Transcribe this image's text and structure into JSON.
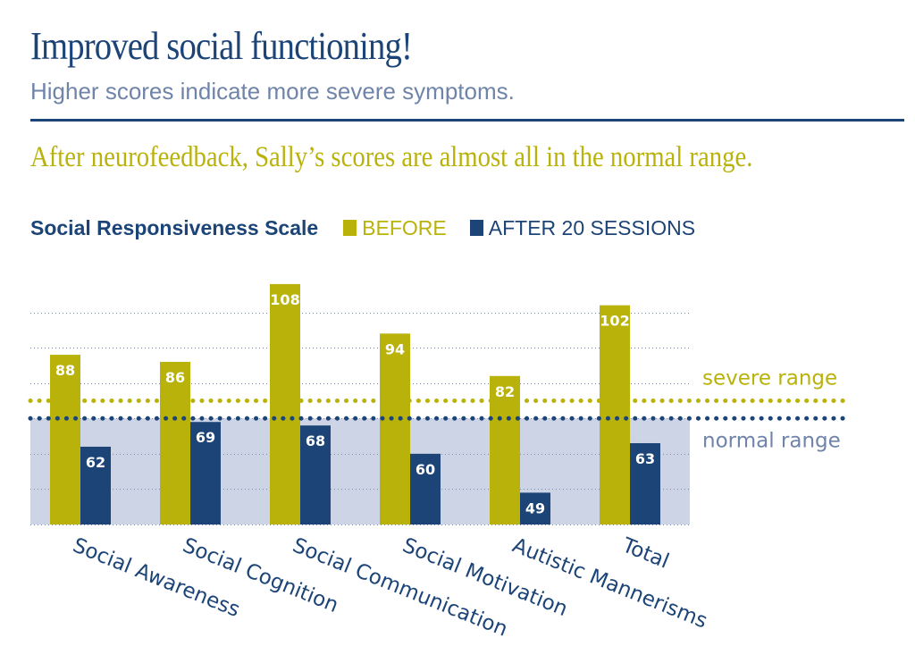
{
  "header": {
    "title": "Improved social functioning!",
    "subtitle": "Higher scores indicate more severe symptoms.",
    "tagline": "After neurofeedback, Sally’s scores are almost all in the normal range."
  },
  "legend": {
    "title": "Social Responsiveness Scale",
    "before": "BEFORE",
    "after": "AFTER 20 SESSIONS"
  },
  "chart_data": {
    "type": "bar",
    "title": "Social Responsiveness Scale",
    "categories": [
      "Social Awareness",
      "Social Cognition",
      "Social Communication",
      "Social Motivation",
      "Autistic Mannerisms",
      "Total"
    ],
    "series": [
      {
        "name": "BEFORE",
        "color": "#b9b20a",
        "values": [
          88,
          86,
          108,
          94,
          82,
          102
        ]
      },
      {
        "name": "AFTER 20 SESSIONS",
        "color": "#1c4477",
        "values": [
          62,
          69,
          68,
          60,
          49,
          63
        ]
      }
    ],
    "ylim": [
      40,
      110
    ],
    "grid": true,
    "thresholds": [
      {
        "label": "severe range",
        "value": 75,
        "color": "#b9b20a"
      },
      {
        "label": "normal range",
        "value": 70,
        "color": "#1c4477",
        "band_from": 40
      }
    ]
  },
  "colors": {
    "navy": "#1c4477",
    "olive": "#b9b20a",
    "band": "#cdd4e5",
    "subtitle": "#6f84a8"
  }
}
